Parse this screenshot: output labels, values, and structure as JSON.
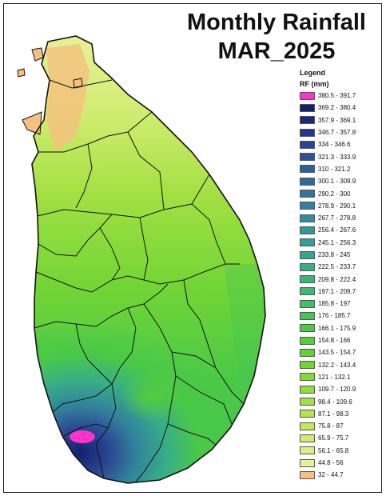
{
  "title": {
    "line1": "Monthly Rainfall",
    "line2": "MAR_2025"
  },
  "legend": {
    "heading": "Legend",
    "subheading": "RF (mm)",
    "classes": [
      {
        "label": "380.5 - 391.7",
        "color": "#ff33cc"
      },
      {
        "label": "369.2 - 380.4",
        "color": "#14206e"
      },
      {
        "label": "357.9 - 369.1",
        "color": "#1a2a7e"
      },
      {
        "label": "346.7 - 357.8",
        "color": "#22378a"
      },
      {
        "label": "334 - 346.6",
        "color": "#2a4592"
      },
      {
        "label": "321.3 - 333.9",
        "color": "#2d5296"
      },
      {
        "label": "310 - 321.2",
        "color": "#2e5f9a"
      },
      {
        "label": "300.1 - 309.9",
        "color": "#2f6a9c"
      },
      {
        "label": "290.2 - 300",
        "color": "#30759c"
      },
      {
        "label": "278.9 - 290.1",
        "color": "#31819c"
      },
      {
        "label": "267.7 - 278.8",
        "color": "#328c9b"
      },
      {
        "label": "256.4 - 267.6",
        "color": "#339699"
      },
      {
        "label": "245.1 - 256.3",
        "color": "#349f95"
      },
      {
        "label": "233.8 - 245",
        "color": "#36a78f"
      },
      {
        "label": "222.5 - 233.7",
        "color": "#38ae86"
      },
      {
        "label": "209.8 - 222.4",
        "color": "#3bb47c"
      },
      {
        "label": "197.1 - 209.7",
        "color": "#3eba70"
      },
      {
        "label": "185.8 - 197",
        "color": "#41bf63"
      },
      {
        "label": "176 - 185.7",
        "color": "#44c455"
      },
      {
        "label": "166.1 - 175.9",
        "color": "#4ac947"
      },
      {
        "label": "154.8 - 166",
        "color": "#55cd3d"
      },
      {
        "label": "143.5 - 154.7",
        "color": "#62d137"
      },
      {
        "label": "132.2 - 143.4",
        "color": "#72d535"
      },
      {
        "label": "121 - 132.1",
        "color": "#83d936"
      },
      {
        "label": "109.7 - 120.9",
        "color": "#93dc3b"
      },
      {
        "label": "98.4 - 109.6",
        "color": "#a3e043"
      },
      {
        "label": "87.1 - 98.3",
        "color": "#b3e44f"
      },
      {
        "label": "75.8 - 87",
        "color": "#c2e85e"
      },
      {
        "label": "65.9 - 75.7",
        "color": "#d0ec70"
      },
      {
        "label": "56.1 - 65.8",
        "color": "#dcef84"
      },
      {
        "label": "44.8 - 56",
        "color": "#e8f19a"
      },
      {
        "label": "32 - 44.7",
        "color": "#f4c27e"
      }
    ]
  }
}
